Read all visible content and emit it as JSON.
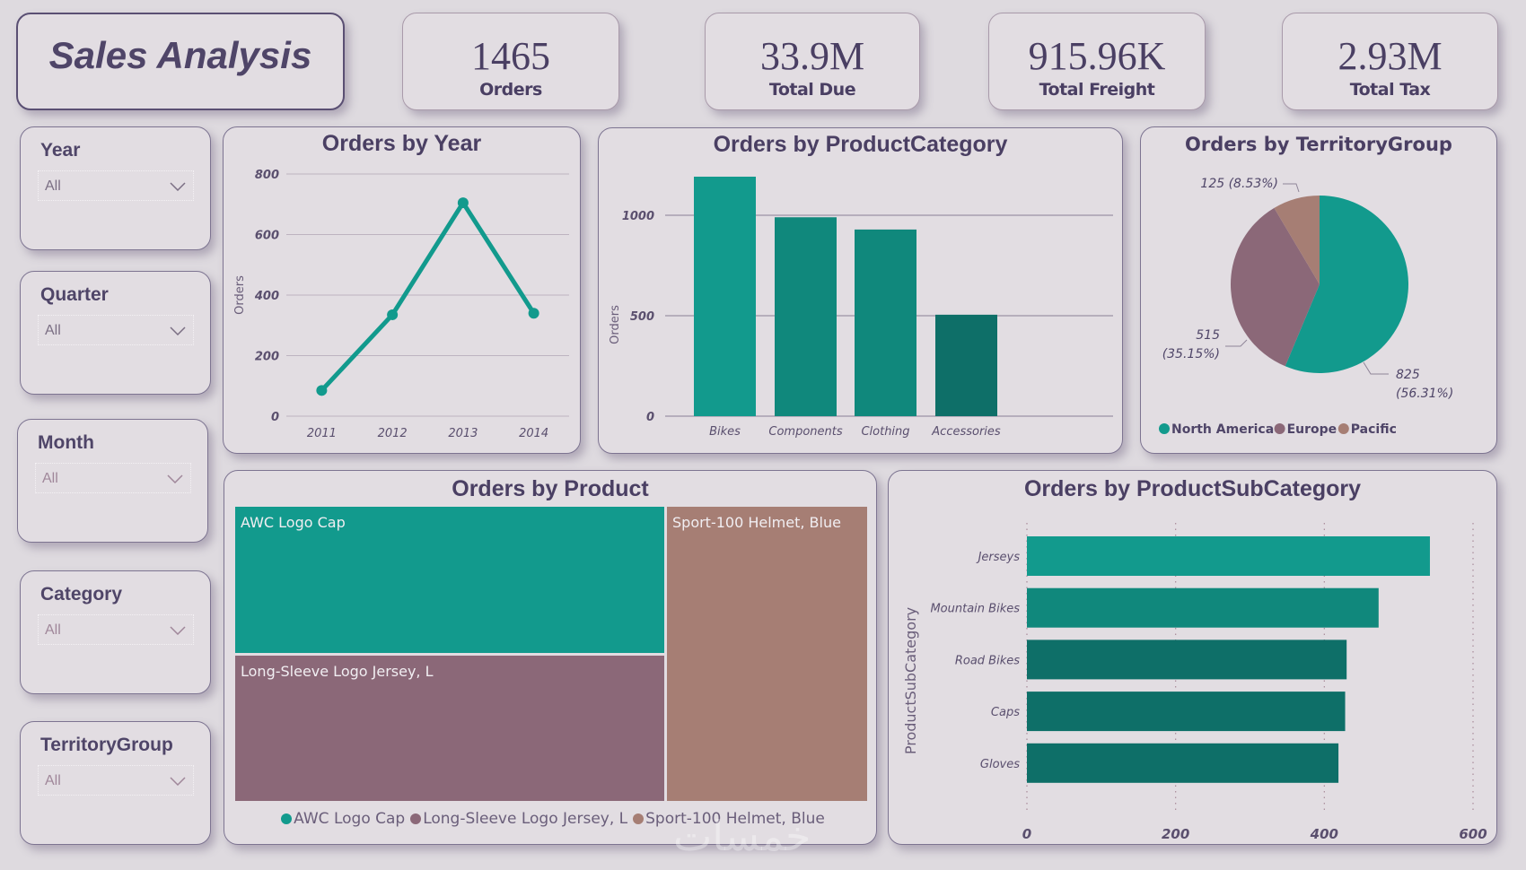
{
  "header": {
    "title": "Sales Analysis"
  },
  "kpis": [
    {
      "value": "1465",
      "label": "Orders"
    },
    {
      "value": "33.9M",
      "label": "Total Due"
    },
    {
      "value": "915.96K",
      "label": "Total Freight"
    },
    {
      "value": "2.93M",
      "label": "Total Tax"
    }
  ],
  "slicers": [
    {
      "label": "Year",
      "value": "All"
    },
    {
      "label": "Quarter",
      "value": "All"
    },
    {
      "label": "Month",
      "value": "All"
    },
    {
      "label": "Category",
      "value": "All"
    },
    {
      "label": "TerritoryGroup",
      "value": "All"
    }
  ],
  "colors": {
    "teal": "#129a8d",
    "teal_mid": "#10887c",
    "teal_dark": "#0e6f68",
    "mauve": "#8b6878",
    "rose": "#a67e74",
    "text": "#4a3f63"
  },
  "watermark": "خمسات",
  "chart_data": [
    {
      "id": "orders_by_year",
      "type": "line",
      "title": "Orders by Year",
      "xlabel": "",
      "ylabel": "Orders",
      "categories": [
        "2011",
        "2012",
        "2013",
        "2014"
      ],
      "values": [
        85,
        335,
        705,
        340
      ],
      "ylim": [
        0,
        800
      ],
      "yticks": [
        0,
        200,
        400,
        600,
        800
      ],
      "grid": true
    },
    {
      "id": "orders_by_productcategory",
      "type": "bar",
      "title": "Orders by ProductCategory",
      "xlabel": "",
      "ylabel": "Orders",
      "categories": [
        "Bikes",
        "Components",
        "Clothing",
        "Accessories"
      ],
      "values": [
        1192,
        990,
        929,
        505
      ],
      "ylim": [
        0,
        1200
      ],
      "yticks": [
        0,
        500,
        1000
      ],
      "grid": true
    },
    {
      "id": "orders_by_territorygroup",
      "type": "pie",
      "title": "Orders by TerritoryGroup",
      "categories": [
        "North America",
        "Europe",
        "Pacific"
      ],
      "values": [
        825,
        515,
        125
      ],
      "percents": [
        "56.31%",
        "35.15%",
        "8.53%"
      ],
      "labels": [
        "825 (56.31%)",
        "515 (35.15%)",
        "125 (8.53%)"
      ],
      "legend": "bottom-left"
    },
    {
      "id": "orders_by_product",
      "type": "treemap",
      "title": "Orders by Product",
      "categories": [
        "AWC Logo Cap",
        "Long-Sleeve Logo Jersey, L",
        "Sport-100 Helmet, Blue"
      ],
      "values": [
        428,
        420,
        393
      ],
      "legend": "bottom"
    },
    {
      "id": "orders_by_productsubcategory",
      "type": "bar",
      "orientation": "horizontal",
      "title": "Orders by ProductSubCategory",
      "xlabel": "",
      "ylabel": "ProductSubCategory",
      "categories": [
        "Jerseys",
        "Mountain Bikes",
        "Road Bikes",
        "Caps",
        "Gloves"
      ],
      "values": [
        542,
        473,
        430,
        428,
        419
      ],
      "xlim": [
        0,
        600
      ],
      "xticks": [
        0,
        200,
        400,
        600
      ],
      "grid": true
    }
  ]
}
